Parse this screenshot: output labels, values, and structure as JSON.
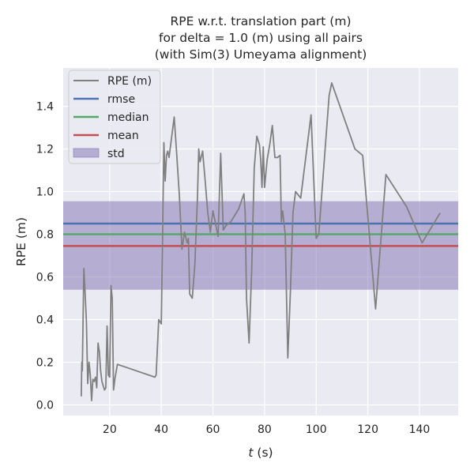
{
  "chart_data": {
    "type": "line",
    "title_lines": [
      "RPE w.r.t. translation part (m)",
      "for delta = 1.0 (m) using all pairs",
      "(with Sim(3) Umeyama alignment)"
    ],
    "xlabel_italic": "t",
    "xlabel_rest": " (s)",
    "ylabel": "RPE (m)",
    "xlim": [
      2,
      155
    ],
    "ylim": [
      -0.05,
      1.58
    ],
    "xticks": [
      20,
      40,
      60,
      80,
      100,
      120,
      140
    ],
    "xtick_labels": [
      "20",
      "40",
      "60",
      "80",
      "100",
      "120",
      "140"
    ],
    "yticks": [
      0.0,
      0.2,
      0.4,
      0.6,
      0.8,
      1.0,
      1.2,
      1.4
    ],
    "ytick_labels": [
      "0.0",
      "0.2",
      "0.4",
      "0.6",
      "0.8",
      "1.0",
      "1.2",
      "1.4"
    ],
    "grid": true,
    "legend_position": "top-left",
    "legend": [
      "RPE (m)",
      "rmse",
      "median",
      "mean",
      "std"
    ],
    "colors": {
      "background": "#eaeaf2",
      "grid": "#ffffff",
      "rpe": "#808080",
      "rmse": "#4c72b0",
      "median": "#55a868",
      "mean": "#c44e52",
      "std": "#8172b2"
    },
    "stats": {
      "rmse": 0.85,
      "median": 0.8,
      "mean": 0.745,
      "std_low": 0.54,
      "std_high": 0.955
    },
    "series": [
      {
        "name": "RPE (m)",
        "x": [
          9,
          9.2,
          9.4,
          10,
          10.5,
          11,
          11.5,
          12,
          12.5,
          13,
          13.5,
          14,
          14.5,
          15,
          15.5,
          16,
          16.5,
          17,
          18,
          18.5,
          19,
          19.5,
          20,
          20.5,
          21,
          21.5,
          22,
          23,
          37.5,
          38,
          39,
          40,
          41,
          41.5,
          42,
          42.5,
          43,
          45,
          46,
          47,
          48,
          49,
          50,
          50.5,
          51,
          52,
          53,
          54,
          54.5,
          55,
          56,
          57,
          58,
          59,
          60,
          62,
          63,
          64,
          65,
          67,
          70,
          72,
          72.5,
          73,
          74,
          75,
          76,
          77,
          78,
          78.5,
          79,
          79.5,
          80,
          81,
          82,
          83,
          84,
          85,
          86,
          86.5,
          87,
          88,
          89,
          90,
          91,
          92,
          94,
          98,
          100,
          101,
          105,
          106,
          115,
          118,
          123,
          127,
          135,
          141,
          148
        ],
        "y": [
          0.04,
          0.2,
          0.16,
          0.64,
          0.52,
          0.39,
          0.1,
          0.2,
          0.14,
          0.02,
          0.12,
          0.11,
          0.13,
          0.08,
          0.29,
          0.25,
          0.16,
          0.11,
          0.07,
          0.08,
          0.37,
          0.14,
          0.13,
          0.56,
          0.5,
          0.07,
          0.12,
          0.19,
          0.13,
          0.14,
          0.4,
          0.38,
          1.23,
          1.05,
          1.17,
          1.19,
          1.16,
          1.35,
          1.17,
          0.98,
          0.73,
          0.81,
          0.76,
          0.78,
          0.52,
          0.5,
          0.66,
          0.97,
          1.2,
          1.14,
          1.19,
          1.05,
          0.9,
          0.81,
          0.91,
          0.79,
          1.18,
          0.82,
          0.84,
          0.86,
          0.92,
          0.99,
          0.9,
          0.5,
          0.29,
          0.63,
          1.11,
          1.26,
          1.22,
          1.15,
          1.02,
          1.21,
          1.02,
          1.15,
          1.22,
          1.31,
          1.16,
          1.16,
          1.17,
          0.86,
          0.91,
          0.8,
          0.22,
          0.53,
          0.9,
          1.0,
          0.97,
          1.36,
          0.78,
          0.8,
          1.45,
          1.51,
          1.2,
          1.17,
          0.45,
          1.08,
          0.93,
          0.76,
          0.9
        ]
      }
    ]
  }
}
